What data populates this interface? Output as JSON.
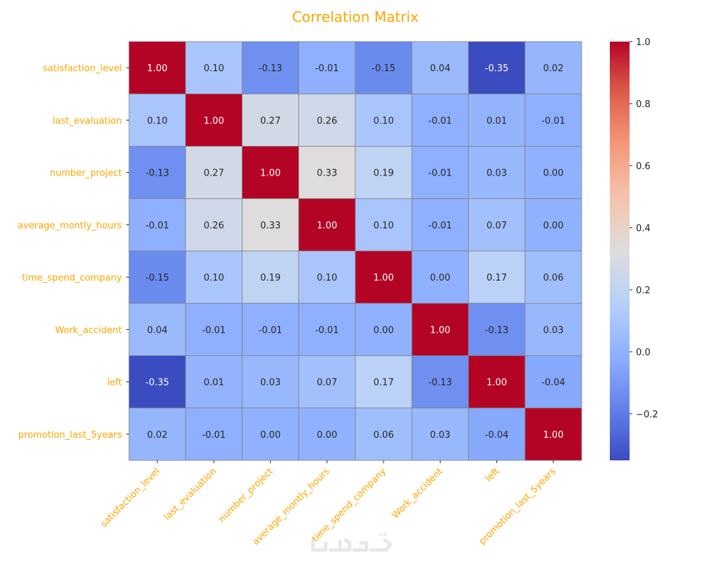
{
  "chart_data": {
    "type": "heatmap",
    "title": "Correlation Matrix",
    "labels": [
      "satisfaction_level",
      "last_evaluation",
      "number_project",
      "average_montly_hours",
      "time_spend_company",
      "Work_accident",
      "left",
      "promotion_last_5years"
    ],
    "values": [
      [
        1.0,
        0.1,
        -0.13,
        -0.01,
        -0.15,
        0.04,
        -0.35,
        0.02
      ],
      [
        0.1,
        1.0,
        0.27,
        0.26,
        0.1,
        -0.01,
        0.01,
        -0.01
      ],
      [
        -0.13,
        0.27,
        1.0,
        0.33,
        0.19,
        -0.01,
        0.03,
        -0.0
      ],
      [
        -0.01,
        0.26,
        0.33,
        1.0,
        0.1,
        -0.01,
        0.07,
        -0.0
      ],
      [
        -0.15,
        0.1,
        0.19,
        0.1,
        1.0,
        0.0,
        0.17,
        0.06
      ],
      [
        0.04,
        -0.01,
        -0.01,
        -0.01,
        0.0,
        1.0,
        -0.13,
        0.03
      ],
      [
        -0.35,
        0.01,
        0.03,
        0.07,
        0.17,
        -0.13,
        1.0,
        -0.04
      ],
      [
        0.02,
        -0.01,
        -0.0,
        -0.0,
        0.06,
        0.03,
        -0.04,
        1.0
      ]
    ],
    "colormap": "coolwarm",
    "vmin": -0.35,
    "vmax": 1.0,
    "colorbar_ticks": [
      -0.2,
      0.0,
      0.2,
      0.4,
      0.6,
      0.8,
      1.0
    ],
    "colorbar_tick_labels": [
      "−0.2",
      "0.0",
      "0.2",
      "0.4",
      "0.6",
      "0.8",
      "1.0"
    ],
    "label_color": "#ffa500"
  },
  "watermark": "خمسات"
}
